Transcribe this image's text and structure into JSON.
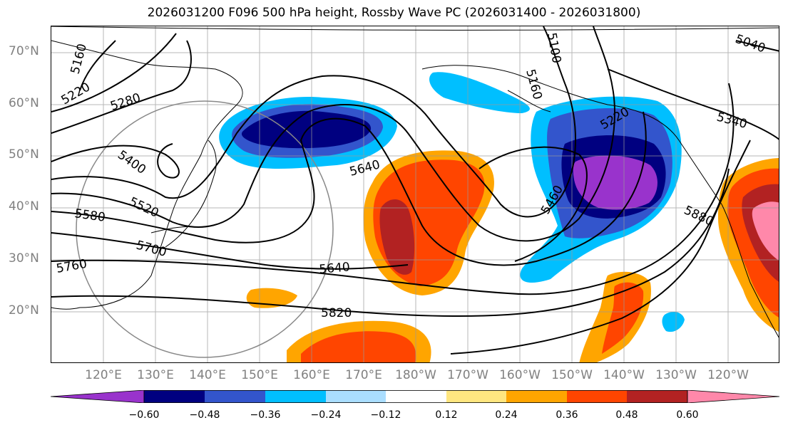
{
  "title": "2026031200 F096 500 hPa height, Rossby Wave PC (2026031400 - 2026031800)",
  "lat_labels": [
    "70°N",
    "60°N",
    "50°N",
    "40°N",
    "30°N",
    "20°N"
  ],
  "lon_labels": [
    "120°E",
    "130°E",
    "140°E",
    "150°E",
    "160°E",
    "170°E",
    "180°W",
    "170°W",
    "160°W",
    "150°W",
    "140°W",
    "130°W",
    "120°W"
  ],
  "contour_labels": [
    "5160",
    "5220",
    "5280",
    "5400",
    "5520",
    "5580",
    "5700",
    "5760",
    "5640",
    "5820",
    "5640",
    "5100",
    "5160",
    "5220",
    "5340",
    "5460",
    "5880",
    "5040"
  ],
  "colorbar": {
    "colors": [
      "#9933cc",
      "#000080",
      "#3355cc",
      "#00bfff",
      "#aadeff",
      "#ffffff",
      "#ffe680",
      "#ffa500",
      "#ff4500",
      "#b22222",
      "#ff88aa"
    ],
    "ticks": [
      "−0.60",
      "−0.48",
      "−0.36",
      "−0.24",
      "−0.12",
      "0.12",
      "0.24",
      "0.36",
      "0.48",
      "0.60"
    ]
  }
}
